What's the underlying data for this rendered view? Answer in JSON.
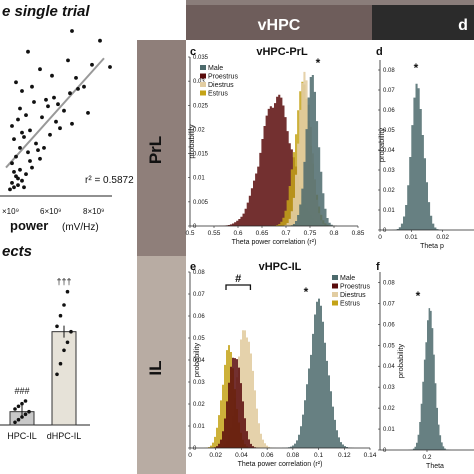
{
  "header": {
    "col_vhpc": "vHPC",
    "col_dhpc": "d",
    "row_prl": "PrL",
    "row_il": "IL",
    "header_color": "#6e5d5b",
    "header_dark": "#2b2b2b",
    "row_color": "#b8aca3"
  },
  "colors": {
    "Male": "#4c6a6c",
    "Proestrus": "#5a0c0c",
    "Diestrus": "#e2cda2",
    "Estrus": "#c4a317"
  },
  "chart_data": [
    {
      "panel_label": "",
      "type": "scatter",
      "title": "e single trial",
      "xlabel": "power",
      "xunit": "(mV/Hz)",
      "annotation": "r² = 0.5872",
      "xtick_labels": [
        "×10⁹",
        "6×10⁹",
        "8×10⁹"
      ],
      "x": [
        0.5,
        0.6,
        0.7,
        0.8,
        0.9,
        1.0,
        1.1,
        1.2,
        0.6,
        0.8,
        1.0,
        1.3,
        1.5,
        0.7,
        0.9,
        1.1,
        1.4,
        1.6,
        1.8,
        2.0,
        0.6,
        0.9,
        1.2,
        1.5,
        2.2,
        2.5,
        2.8,
        3.0,
        1.0,
        1.3,
        1.7,
        2.1,
        2.4,
        2.7,
        3.2,
        3.5,
        0.8,
        1.1,
        1.6,
        2.3,
        3.8,
        4.2,
        2.0,
        2.6,
        3.4,
        4.6,
        1.4,
        5.0,
        2.9,
        3.9,
        5.5,
        0.7,
        1.9,
        3.6,
        4.4
      ],
      "y": [
        0.3,
        0.6,
        0.4,
        0.9,
        0.5,
        1.2,
        0.7,
        0.4,
        1.5,
        1.8,
        2.2,
        1.0,
        1.6,
        2.6,
        0.8,
        2.9,
        2.0,
        1.3,
        2.4,
        1.7,
        3.2,
        3.5,
        2.7,
        3.0,
        2.2,
        2.8,
        3.4,
        3.1,
        4.0,
        3.7,
        4.3,
        3.6,
        4.1,
        4.5,
        3.9,
        4.7,
        5.2,
        4.8,
        5.0,
        4.4,
        5.4,
        5.0,
        5.8,
        5.5,
        6.2,
        6.0,
        6.6,
        7.1,
        4.2,
        4.9,
        5.9,
        1.1,
        2.1,
        3.3,
        3.8
      ],
      "fit_x": [
        0.3,
        5.2
      ],
      "fit_y": [
        1.3,
        6.3
      ]
    },
    {
      "panel_label": "",
      "type": "bar",
      "title": "ects",
      "categories": [
        "HPC-IL",
        "dHPC-IL"
      ],
      "values": [
        0.05,
        0.35
      ],
      "significance": [
        "###",
        "†††"
      ],
      "points": [
        [
          0.01,
          0.02,
          0.03,
          0.04,
          0.05,
          0.06,
          0.07,
          0.08,
          0.09
        ],
        [
          0.19,
          0.23,
          0.28,
          0.31,
          0.35,
          0.37,
          0.41,
          0.45,
          0.5
        ]
      ],
      "ylim": [
        0,
        0.6
      ]
    },
    {
      "panel_label": "c",
      "type": "histogram",
      "title": "vHPC-PrL",
      "xlabel": "Theta power correlation (r²)",
      "ylabel": "probability",
      "xticks": [
        "0.5",
        "0.55",
        "0.6",
        "0.65",
        "0.7",
        "0.75",
        "0.8",
        "0.85"
      ],
      "yticks": [
        "0",
        "0.005",
        "0.01",
        "0.015",
        "0.02",
        "0.025",
        "0.03",
        "0.035"
      ],
      "xlim": [
        0.5,
        0.85
      ],
      "ylim": [
        0,
        0.035
      ],
      "significance": "*",
      "legend": [
        "Male",
        "Proestrus",
        "Diestrus",
        "Estrus"
      ],
      "series": [
        {
          "name": "Proestrus",
          "mean": 0.68,
          "sd": 0.032,
          "peak": 0.028
        },
        {
          "name": "Estrus",
          "mean": 0.735,
          "sd": 0.017,
          "peak": 0.03
        },
        {
          "name": "Diestrus",
          "mean": 0.74,
          "sd": 0.013,
          "peak": 0.033
        },
        {
          "name": "Male",
          "mean": 0.755,
          "sd": 0.013,
          "peak": 0.032
        }
      ]
    },
    {
      "panel_label": "d",
      "type": "histogram",
      "title": "",
      "xlabel": "Theta p",
      "ylabel": "probability",
      "xticks": [
        "0",
        "0.01",
        "0.02"
      ],
      "yticks": [
        "0",
        "0.01",
        "0.02",
        "0.03",
        "0.04",
        "0.05",
        "0.06",
        "0.07",
        "0.08"
      ],
      "xlim": [
        0,
        0.03
      ],
      "ylim": [
        0,
        0.085
      ],
      "significance": "*",
      "series": [
        {
          "name": "Male",
          "mean": 0.012,
          "sd": 0.002,
          "peak": 0.075
        }
      ]
    },
    {
      "panel_label": "e",
      "type": "histogram",
      "title": "vHPC-IL",
      "xlabel": "Theta power correlation (r²)",
      "ylabel": "probability",
      "xticks": [
        "0",
        "0.02",
        "0.04",
        "0.06",
        "0.08",
        "0.1",
        "0.12",
        "0.14"
      ],
      "yticks": [
        "0",
        "0.01",
        "0.02",
        "0.03",
        "0.04",
        "0.05",
        "0.06",
        "0.07",
        "0.08"
      ],
      "xlim": [
        0,
        0.14
      ],
      "ylim": [
        0,
        0.08
      ],
      "significance": "*",
      "bracket": "#",
      "legend": [
        "Male",
        "Proestrus",
        "Diestrus",
        "Estrus"
      ],
      "series": [
        {
          "name": "Diestrus",
          "mean": 0.043,
          "sd": 0.006,
          "peak": 0.058
        },
        {
          "name": "Estrus",
          "mean": 0.03,
          "sd": 0.005,
          "peak": 0.047
        },
        {
          "name": "Proestrus",
          "mean": 0.035,
          "sd": 0.005,
          "peak": 0.046
        },
        {
          "name": "Male",
          "mean": 0.1,
          "sd": 0.007,
          "peak": 0.068
        }
      ]
    },
    {
      "panel_label": "f",
      "type": "histogram",
      "title": "",
      "xlabel": "Theta",
      "ylabel": "probability",
      "xticks": [
        "0.2"
      ],
      "yticks": [
        "0",
        "0.01",
        "0.02",
        "0.03",
        "0.04",
        "0.05",
        "0.06",
        "0.07",
        "0.08"
      ],
      "xlim": [
        0,
        0.4
      ],
      "ylim": [
        0,
        0.085
      ],
      "significance": "*",
      "series": [
        {
          "name": "Male",
          "mean": 0.21,
          "sd": 0.022,
          "peak": 0.07
        }
      ]
    }
  ]
}
